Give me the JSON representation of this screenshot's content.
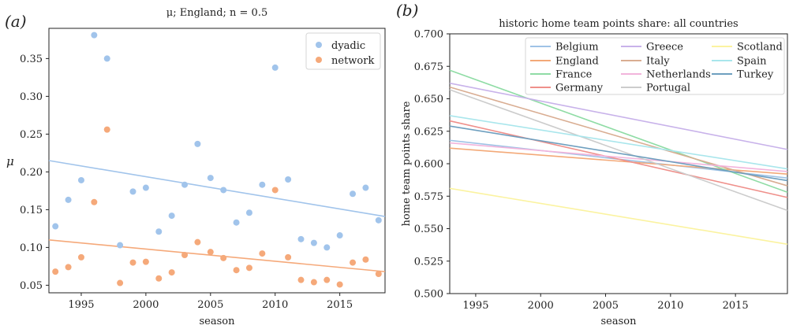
{
  "chart_data": [
    {
      "panel_label": "(a)",
      "type": "scatter",
      "title": "μ; England; n = 0.5",
      "xlabel": "season",
      "ylabel": "μ",
      "xlim": [
        1992.5,
        2018.5
      ],
      "ylim": [
        0.04,
        0.39
      ],
      "xticks": [
        1995,
        2000,
        2005,
        2010,
        2015
      ],
      "yticks": [
        0.05,
        0.1,
        0.15,
        0.2,
        0.25,
        0.3,
        0.35
      ],
      "grid": false,
      "legend_position": "top-right",
      "series": [
        {
          "name": "dyadic",
          "color": "#a1c4eb",
          "x": [
            1993,
            1994,
            1995,
            1996,
            1997,
            1998,
            1999,
            2000,
            2001,
            2002,
            2003,
            2004,
            2005,
            2006,
            2007,
            2008,
            2009,
            2010,
            2011,
            2012,
            2013,
            2014,
            2015,
            2016,
            2017,
            2018
          ],
          "y": [
            0.128,
            0.163,
            0.189,
            0.381,
            0.35,
            0.103,
            0.174,
            0.179,
            0.121,
            0.142,
            0.183,
            0.237,
            0.192,
            0.176,
            0.133,
            0.146,
            0.183,
            0.338,
            0.19,
            0.111,
            0.106,
            0.1,
            0.116,
            0.171,
            0.179,
            0.136
          ],
          "trend": [
            0.215,
            0.141
          ]
        },
        {
          "name": "network",
          "color": "#f5a97a",
          "x": [
            1993,
            1994,
            1995,
            1996,
            1997,
            1998,
            1999,
            2000,
            2001,
            2002,
            2003,
            2004,
            2005,
            2006,
            2007,
            2008,
            2009,
            2010,
            2011,
            2012,
            2013,
            2014,
            2015,
            2016,
            2017,
            2018
          ],
          "y": [
            0.068,
            0.074,
            0.087,
            0.16,
            0.256,
            0.053,
            0.08,
            0.081,
            0.059,
            0.067,
            0.09,
            0.107,
            0.094,
            0.086,
            0.07,
            0.073,
            0.092,
            0.176,
            0.087,
            0.057,
            0.054,
            0.057,
            0.051,
            0.08,
            0.084,
            0.065
          ],
          "trend": [
            0.11,
            0.068
          ]
        }
      ]
    },
    {
      "panel_label": "(b)",
      "type": "line",
      "title": "historic home team points share: all countries",
      "xlabel": "season",
      "ylabel": "home team points share",
      "xlim": [
        1993,
        2019
      ],
      "ylim": [
        0.5,
        0.7
      ],
      "xticks": [
        1995,
        2000,
        2005,
        2010,
        2015
      ],
      "yticks": [
        0.5,
        0.525,
        0.55,
        0.575,
        0.6,
        0.625,
        0.65,
        0.675,
        0.7
      ],
      "grid": false,
      "legend_position": "top-right",
      "series": [
        {
          "name": "Belgium",
          "color": "#9fc3e6",
          "x": [
            1993,
            2019
          ],
          "y": [
            0.618,
            0.589
          ]
        },
        {
          "name": "England",
          "color": "#f3a978",
          "x": [
            1993,
            2019
          ],
          "y": [
            0.612,
            0.592
          ]
        },
        {
          "name": "France",
          "color": "#8fdca5",
          "x": [
            1993,
            2019
          ],
          "y": [
            0.672,
            0.578
          ]
        },
        {
          "name": "Germany",
          "color": "#ef908b",
          "x": [
            1993,
            2019
          ],
          "y": [
            0.633,
            0.574
          ]
        },
        {
          "name": "Greece",
          "color": "#c8b2ea",
          "x": [
            1993,
            2019
          ],
          "y": [
            0.662,
            0.611
          ]
        },
        {
          "name": "Italy",
          "color": "#d9ad92",
          "x": [
            1993,
            2019
          ],
          "y": [
            0.659,
            0.583
          ]
        },
        {
          "name": "Netherlands",
          "color": "#f2b4dc",
          "x": [
            1993,
            2019
          ],
          "y": [
            0.616,
            0.594
          ]
        },
        {
          "name": "Portugal",
          "color": "#cccccc",
          "x": [
            1993,
            2019
          ],
          "y": [
            0.657,
            0.564
          ]
        },
        {
          "name": "Scotland",
          "color": "#fbf3a0",
          "x": [
            1993,
            2019
          ],
          "y": [
            0.581,
            0.538
          ]
        },
        {
          "name": "Spain",
          "color": "#a9e6ec",
          "x": [
            1993,
            2019
          ],
          "y": [
            0.637,
            0.596
          ]
        },
        {
          "name": "Turkey",
          "color": "#6e9fbf",
          "x": [
            1993,
            2019
          ],
          "y": [
            0.629,
            0.587
          ]
        }
      ]
    }
  ]
}
